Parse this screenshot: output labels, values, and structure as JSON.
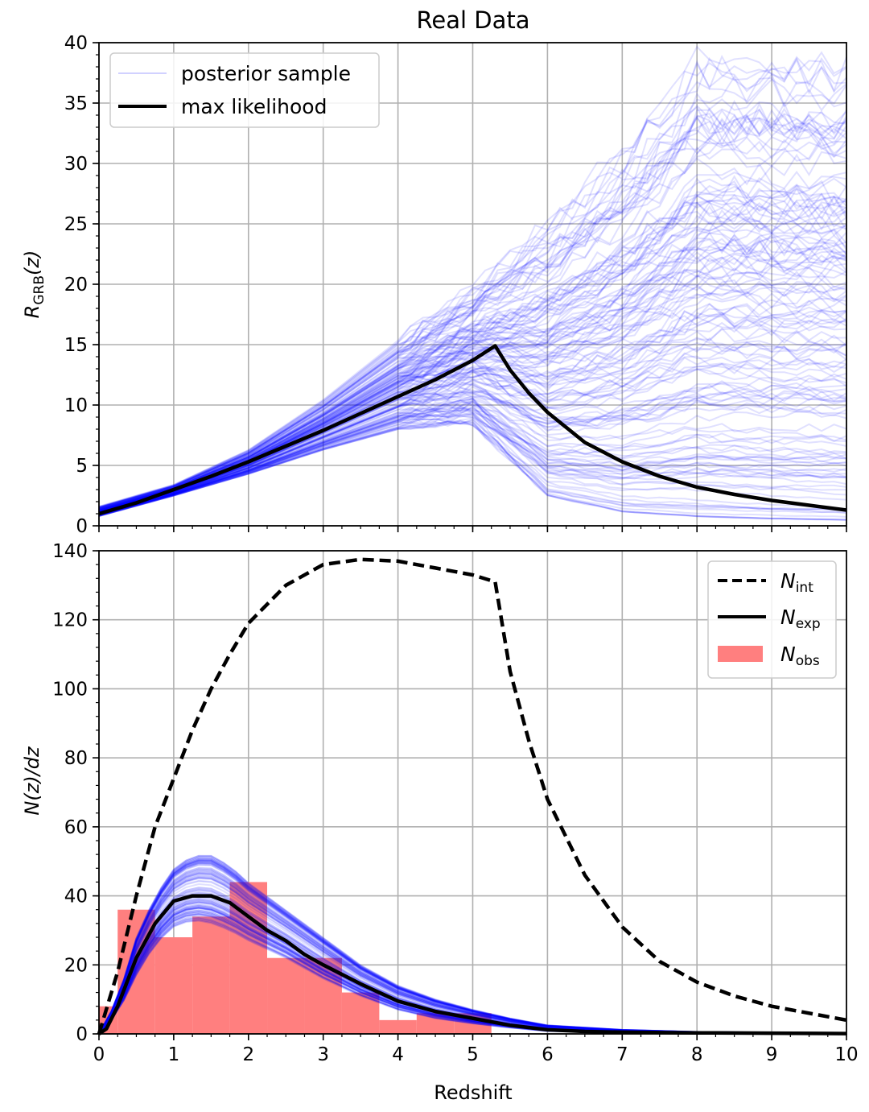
{
  "figure_title": "Real Data",
  "chart_data": [
    {
      "type": "line",
      "xlabel": "",
      "ylabel_main": "R",
      "ylabel_sub": "GRB",
      "ylabel_rest": "(z)",
      "xlim": [
        0,
        10
      ],
      "ylim": [
        0,
        40
      ],
      "xticks": [
        "0",
        "1",
        "2",
        "3",
        "4",
        "5",
        "6",
        "7",
        "8",
        "9",
        "10"
      ],
      "yticks": [
        "0",
        "5",
        "10",
        "15",
        "20",
        "25",
        "30",
        "35",
        "40"
      ],
      "grid": true,
      "legend_position": "top-left",
      "legend": [
        {
          "label": "posterior sample",
          "color": "#0000ff",
          "style": "thin-transparent"
        },
        {
          "label": "max likelihood",
          "color": "#000000",
          "style": "solid"
        }
      ],
      "series": [
        {
          "name": "max likelihood",
          "color": "#000000",
          "x": [
            0,
            0.5,
            1,
            1.5,
            2,
            2.5,
            3,
            3.5,
            4,
            4.5,
            5,
            5.3,
            5.5,
            5.75,
            6,
            6.5,
            7,
            7.5,
            8,
            8.5,
            9,
            9.5,
            10
          ],
          "y": [
            1.0,
            1.9,
            3.0,
            4.1,
            5.3,
            6.6,
            7.9,
            9.3,
            10.7,
            12.1,
            13.7,
            14.9,
            12.9,
            11.0,
            9.4,
            6.9,
            5.3,
            4.1,
            3.2,
            2.6,
            2.1,
            1.7,
            1.3
          ]
        }
      ],
      "posterior_sample_band": {
        "color": "#0000ff",
        "x": [
          0,
          1,
          2,
          3,
          4,
          5,
          6,
          7,
          8,
          9,
          10
        ],
        "y_low": [
          0.8,
          2.5,
          4.3,
          6.3,
          8.0,
          8.5,
          2.5,
          1.2,
          0.8,
          0.6,
          0.5
        ],
        "y_high": [
          1.6,
          3.4,
          6.3,
          10.5,
          15.5,
          20.0,
          26.0,
          32.0,
          40.0,
          40.0,
          40.0
        ]
      }
    },
    {
      "type": "line",
      "xlabel": "Redshift",
      "ylabel": "N(z)/dz",
      "xlim": [
        0,
        10
      ],
      "ylim": [
        0,
        140
      ],
      "xticks": [
        "0",
        "1",
        "2",
        "3",
        "4",
        "5",
        "6",
        "7",
        "8",
        "9",
        "10"
      ],
      "yticks": [
        "0",
        "20",
        "40",
        "60",
        "80",
        "100",
        "120",
        "140"
      ],
      "grid": true,
      "legend_position": "top-right",
      "legend": [
        {
          "label_main": "N",
          "label_sub": "int",
          "color": "#000000",
          "style": "dashed"
        },
        {
          "label_main": "N",
          "label_sub": "exp",
          "color": "#000000",
          "style": "solid"
        },
        {
          "label_main": "N",
          "label_sub": "obs",
          "color": "#ff7f7f",
          "style": "patch"
        }
      ],
      "series": [
        {
          "name": "N_int",
          "color": "#000000",
          "style": "dashed",
          "x": [
            0,
            0.25,
            0.5,
            0.75,
            1,
            1.25,
            1.5,
            1.75,
            2,
            2.5,
            3,
            3.5,
            4,
            4.5,
            5,
            5.3,
            5.5,
            5.75,
            6,
            6.5,
            7,
            7.5,
            8,
            8.5,
            9,
            9.5,
            10
          ],
          "y": [
            0,
            18,
            40,
            60,
            74,
            88,
            100,
            110,
            119,
            130,
            136,
            137.5,
            137,
            135,
            133,
            131,
            105,
            85,
            68,
            46,
            31,
            21,
            15,
            11,
            8,
            6,
            4
          ]
        },
        {
          "name": "N_exp",
          "color": "#000000",
          "style": "solid",
          "x": [
            0,
            0.1,
            0.25,
            0.5,
            0.75,
            1,
            1.25,
            1.5,
            1.75,
            2,
            2.25,
            2.5,
            2.75,
            3,
            3.5,
            4,
            4.5,
            5,
            5.5,
            6,
            6.5,
            7,
            8,
            9,
            10
          ],
          "y": [
            0,
            1.5,
            8,
            22,
            32,
            38.5,
            40,
            40,
            38,
            34,
            30,
            27,
            23,
            20,
            14.5,
            9.5,
            6.5,
            4.5,
            2.5,
            1.2,
            0.7,
            0.5,
            0.3,
            0.2,
            0.1
          ]
        }
      ],
      "posterior_sample_band": {
        "color": "#0000ff",
        "x": [
          0,
          0.25,
          0.5,
          0.75,
          1,
          1.25,
          1.5,
          1.75,
          2,
          2.5,
          3,
          3.5,
          4,
          4.5,
          5,
          5.5,
          6,
          7,
          8,
          10
        ],
        "y_low": [
          0,
          6,
          17,
          26,
          31,
          33,
          32,
          30,
          27,
          22,
          16,
          11,
          7,
          4.5,
          3,
          1.8,
          0.8,
          0.3,
          0.1,
          0
        ],
        "y_high": [
          0,
          10,
          28,
          40,
          48,
          52,
          52,
          49,
          44,
          36,
          28,
          20,
          14,
          10,
          7,
          4.5,
          2.5,
          1.2,
          0.6,
          0.2
        ]
      },
      "histogram": {
        "name": "N_obs",
        "color": "#ff7f7f",
        "bin_edges": [
          0,
          0.25,
          0.75,
          1.25,
          1.75,
          2.25,
          2.75,
          3.25,
          3.75,
          4.25,
          4.75,
          5.25
        ],
        "counts": [
          8,
          36,
          28,
          34,
          44,
          22,
          22,
          12,
          4,
          6,
          6
        ]
      }
    }
  ]
}
